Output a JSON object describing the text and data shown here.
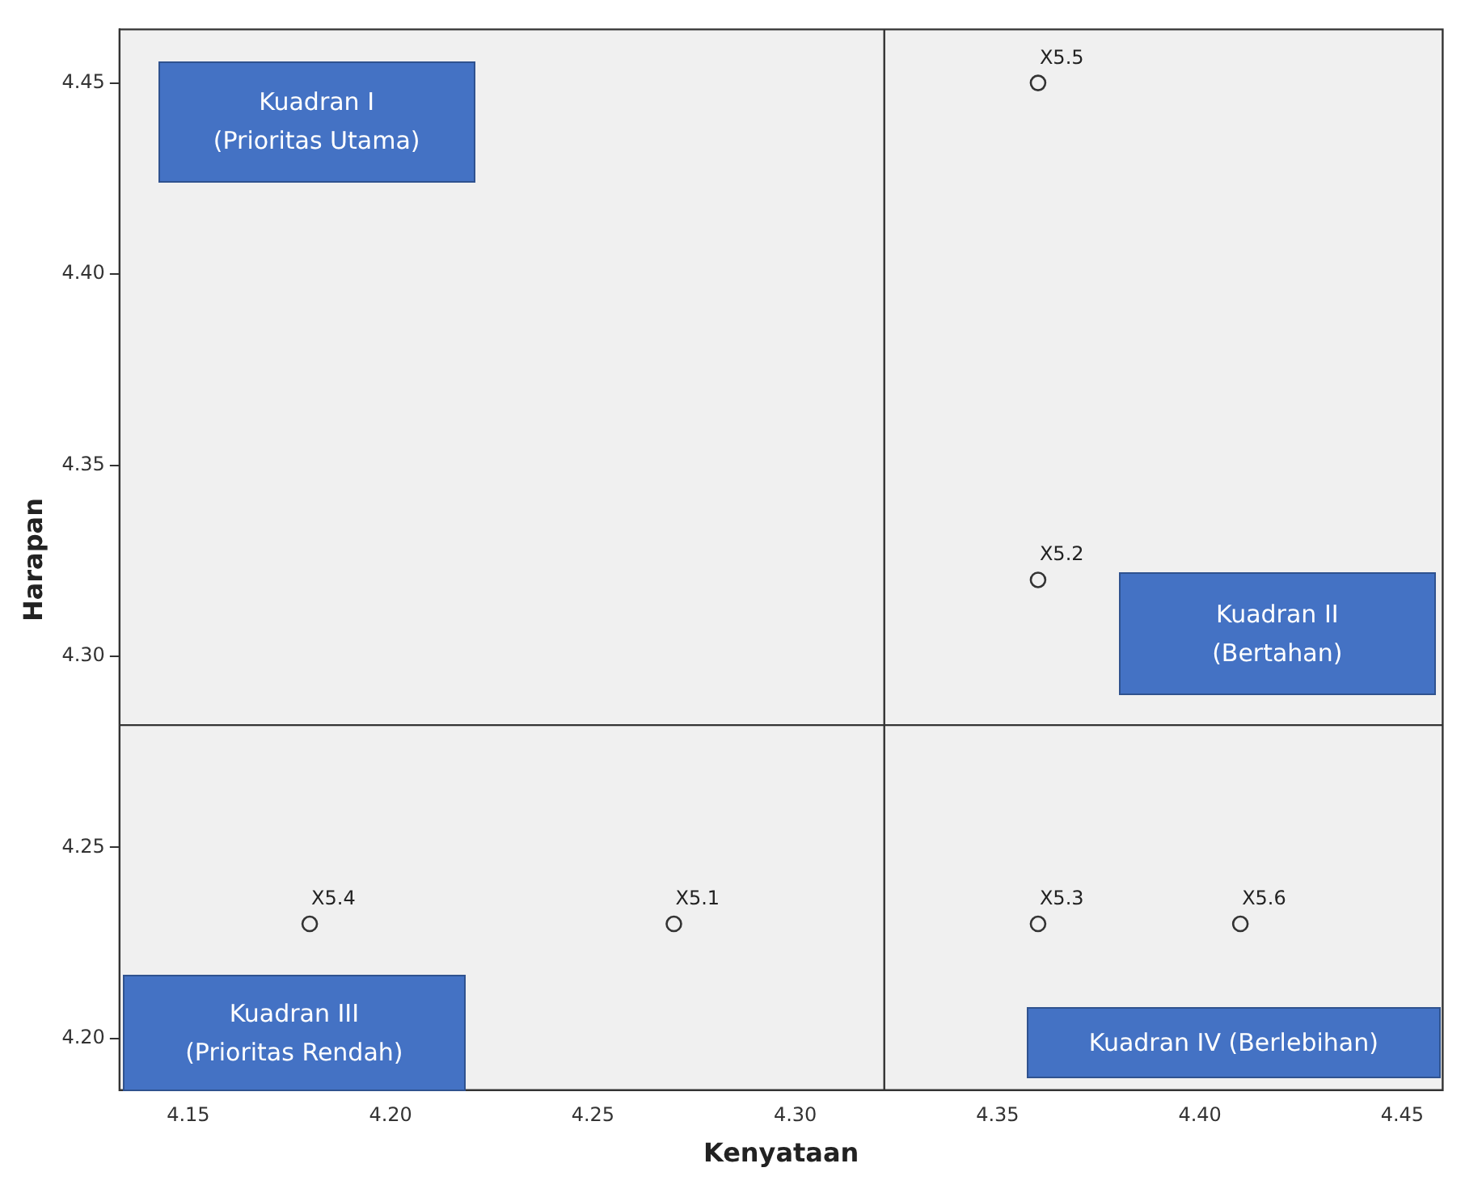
{
  "chart_data": {
    "type": "scatter",
    "xlabel": "Kenyataan",
    "ylabel": "Harapan",
    "x": [
      4.27,
      4.36,
      4.36,
      4.18,
      4.36,
      4.41
    ],
    "series": [
      {
        "color": "#333333",
        "values": [
          4.23,
          4.32,
          4.23,
          4.23,
          4.45,
          4.23
        ]
      }
    ],
    "marker": "circle",
    "grid": false,
    "legend": false,
    "xlim": [
      4.133,
      4.46
    ],
    "xticks": [
      4.15,
      {
        "value": 4.2,
        "label": "4.20"
      },
      4.25,
      {
        "value": 4.3,
        "label": "4.30"
      },
      4.35,
      {
        "value": 4.4,
        "label": "4.40"
      },
      4.45
    ],
    "ylim": [
      4.1865,
      4.464
    ],
    "yticks": [
      {
        "value": 4.2,
        "label": "4.20"
      },
      4.25,
      {
        "value": 4.3,
        "label": "4.30"
      },
      4.35,
      {
        "value": 4.4,
        "label": "4.40"
      },
      4.45
    ],
    "ref_lines": [
      {
        "axis": "x",
        "value": 4.322,
        "color": "#333333"
      },
      {
        "axis": "y",
        "value": 4.282,
        "color": "#333333"
      }
    ],
    "annotations": [
      {
        "text": "X5.1",
        "x": 4.27,
        "y": 4.23
      },
      {
        "text": "X5.2",
        "x": 4.36,
        "y": 4.32
      },
      {
        "text": "X5.3",
        "x": 4.36,
        "y": 4.23
      },
      {
        "text": "X5.4",
        "x": 4.18,
        "y": 4.23
      },
      {
        "text": "X5.5",
        "x": 4.36,
        "y": 4.45
      },
      {
        "text": "X5.6",
        "x": 4.41,
        "y": 4.23
      },
      "Kuadran I\n(Prioritas Utama)",
      "Kuadran II\n(Bertahan)",
      "Kuadran III\n(Prioritas Rendah)",
      "Kuadran IV (Berlebihan)"
    ]
  }
}
